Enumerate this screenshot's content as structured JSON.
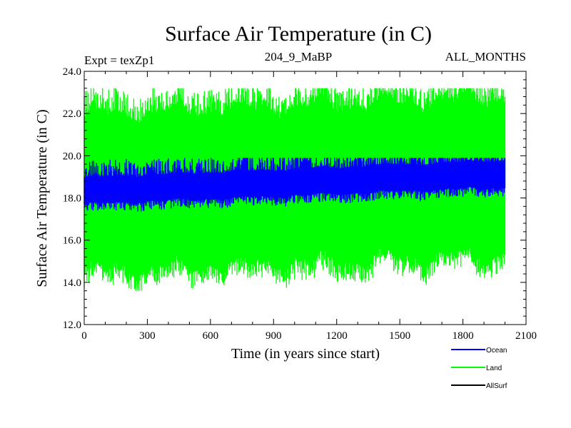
{
  "chart_data": {
    "type": "line",
    "title": "Surface Air Temperature (in C)",
    "subtitle_left": "Expt = texZp1",
    "subtitle_center": "204_9_MaBP",
    "subtitle_right": "ALL_MONTHS",
    "xlabel": "Time (in years since start)",
    "ylabel": "Surface Air Temperature (in C)",
    "xlim": [
      0,
      2100
    ],
    "ylim": [
      12.0,
      24.0
    ],
    "x_ticks": [
      0,
      300,
      600,
      900,
      1200,
      1500,
      1800,
      2100
    ],
    "x_tick_labels": [
      "0",
      "300",
      "600",
      "900",
      "1200",
      "1500",
      "1800",
      "2100"
    ],
    "y_ticks": [
      12.0,
      14.0,
      16.0,
      18.0,
      20.0,
      22.0,
      24.0
    ],
    "y_tick_labels": [
      "12.0",
      "14.0",
      "16.0",
      "18.0",
      "20.0",
      "22.0",
      "24.0"
    ],
    "x_range_data": [
      0,
      2000
    ],
    "legend_position": "bottom-right",
    "series": [
      {
        "name": "Land",
        "color": "#00ff00",
        "annual_cycle_min_approx": 14.5,
        "annual_cycle_max_approx": 22.0,
        "envelope_min": 13.6,
        "envelope_max": 23.2,
        "trend_start": 18.0,
        "trend_end": 18.8
      },
      {
        "name": "Ocean",
        "color": "#0000ff",
        "annual_cycle_min_approx": 17.7,
        "annual_cycle_max_approx": 19.0,
        "envelope_min": 17.2,
        "envelope_max": 19.9,
        "trend_start": 18.3,
        "trend_end": 19.1
      },
      {
        "name": "AllSurf",
        "color": "#000000",
        "values_visible": false
      }
    ],
    "legend": [
      {
        "label": "Ocean",
        "color": "#0000ff"
      },
      {
        "label": "Land",
        "color": "#00ff00"
      },
      {
        "label": "AllSurf",
        "color": "#000000"
      }
    ]
  }
}
